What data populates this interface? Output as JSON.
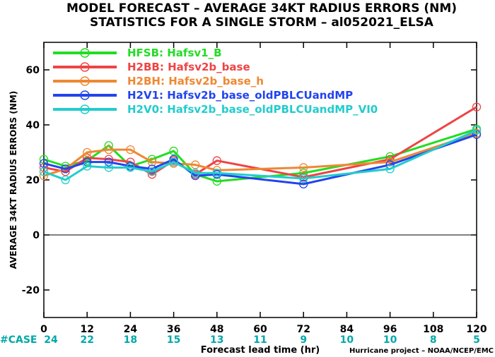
{
  "chart_data": {
    "type": "line",
    "title_line1": "MODEL FORECAST – AVERAGE 34KT RADIUS ERRORS (NM)",
    "title_line2": "STATISTICS FOR A SINGLE STORM – al052021_ELSA",
    "xlabel": "Forecast lead time (hr)",
    "ylabel": "AVERAGE 34KT RADIUS ERRORS (NM)",
    "credit": "Hurricane project – NOAA/NCEP/EMC",
    "xlim": [
      0,
      120
    ],
    "ylim": [
      -30,
      70
    ],
    "x_ticks": [
      0,
      12,
      24,
      36,
      48,
      60,
      72,
      84,
      96,
      108,
      120
    ],
    "y_ticks": [
      -20,
      0,
      20,
      40,
      60
    ],
    "grid": false,
    "zero_line": true,
    "legend_placement": "top-left",
    "case_label": "#CASE",
    "case_color": "#00a8a8",
    "case_counts": [
      {
        "x": 0,
        "count": "24"
      },
      {
        "x": 12,
        "count": "22"
      },
      {
        "x": 24,
        "count": "18"
      },
      {
        "x": 36,
        "count": "15"
      },
      {
        "x": 48,
        "count": "13"
      },
      {
        "x": 60,
        "count": "11"
      },
      {
        "x": 72,
        "count": "9"
      },
      {
        "x": 84,
        "count": "10"
      },
      {
        "x": 96,
        "count": "10"
      },
      {
        "x": 108,
        "count": "8"
      },
      {
        "x": 120,
        "count": "5"
      }
    ],
    "series": [
      {
        "name": "HFSB: Hafsv1_B",
        "color": "#22dd22",
        "x": [
          0,
          6,
          12,
          18,
          24,
          30,
          36,
          42,
          48,
          72,
          96,
          120
        ],
        "y": [
          27.5,
          25,
          27,
          32.5,
          25,
          27.5,
          30.5,
          22,
          19.5,
          22.5,
          28.5,
          38.5
        ]
      },
      {
        "name": "H2BB: Hafsv2b_base",
        "color": "#ee4444",
        "x": [
          0,
          6,
          12,
          18,
          24,
          30,
          36,
          42,
          48,
          72,
          96,
          120
        ],
        "y": [
          24.5,
          23,
          28,
          27.5,
          26.5,
          22,
          27,
          22,
          27,
          21,
          27.5,
          46.5
        ]
      },
      {
        "name": "H2BH: Hafsv2b_base_h",
        "color": "#ee8833",
        "x": [
          0,
          6,
          12,
          18,
          24,
          30,
          36,
          42,
          48,
          72,
          96,
          120
        ],
        "y": [
          21.5,
          24,
          30,
          31,
          31,
          26.5,
          26,
          25.5,
          23.5,
          24.5,
          26.5,
          37
        ]
      },
      {
        "name": "H2V1: Hafsv2b_base_oldPBLCUandMP",
        "color": "#2244ee",
        "x": [
          0,
          6,
          12,
          18,
          24,
          30,
          36,
          42,
          48,
          72,
          96,
          120
        ],
        "y": [
          26,
          24,
          26.5,
          26.5,
          25,
          24,
          27.5,
          21.5,
          22,
          18.5,
          25.5,
          36.5
        ]
      },
      {
        "name": "H2V0: Hafsv2b_base_oldPBLCUandMP_VI0",
        "color": "#22cccc",
        "x": [
          0,
          6,
          12,
          18,
          24,
          30,
          36,
          42,
          48,
          72,
          96,
          120
        ],
        "y": [
          23,
          20,
          25,
          24.5,
          24.5,
          23,
          26.5,
          22.5,
          22.5,
          20.5,
          24,
          38
        ]
      }
    ]
  }
}
